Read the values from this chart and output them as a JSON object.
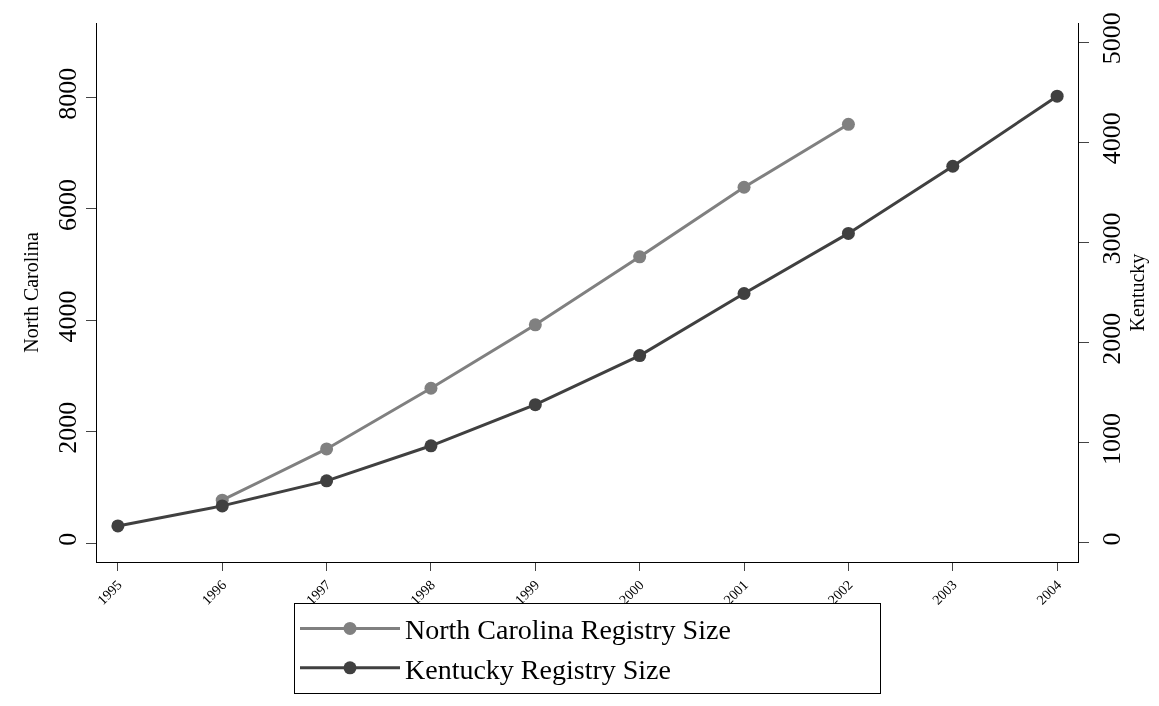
{
  "chart_data": {
    "type": "line",
    "ylabel": "North Carolina",
    "y2label": "Kentucky",
    "x": [
      1995,
      1996,
      1997,
      1998,
      1999,
      2000,
      2001,
      2002,
      2003,
      2004
    ],
    "series": [
      {
        "name": "North Carolina Registry Size",
        "color": "#808080",
        "x": [
          1996,
          1997,
          1998,
          1999,
          2000,
          2001,
          2002
        ],
        "values": [
          770,
          1690,
          2780,
          3920,
          5140,
          6390,
          7520
        ]
      },
      {
        "name": "Kentucky Registry Size",
        "color": "#404040",
        "axis": "y2",
        "values": [
          170,
          370,
          620,
          970,
          1380,
          1870,
          2490,
          3090,
          3760,
          4460
        ]
      }
    ],
    "xlim": [
      1994.8,
      2004.2
    ],
    "xticks": [
      1995,
      1996,
      1997,
      1998,
      1999,
      2000,
      2001,
      2002,
      2003,
      2004
    ],
    "ylim": [
      -340,
      9340
    ],
    "yticks": [
      0,
      2000,
      4000,
      6000,
      8000
    ],
    "y2lim": [
      -190,
      5190
    ],
    "y2ticks": [
      0,
      1000,
      2000,
      3000,
      4000,
      5000
    ],
    "legend": "bottom",
    "marker": "circle",
    "line_style": "solid"
  }
}
